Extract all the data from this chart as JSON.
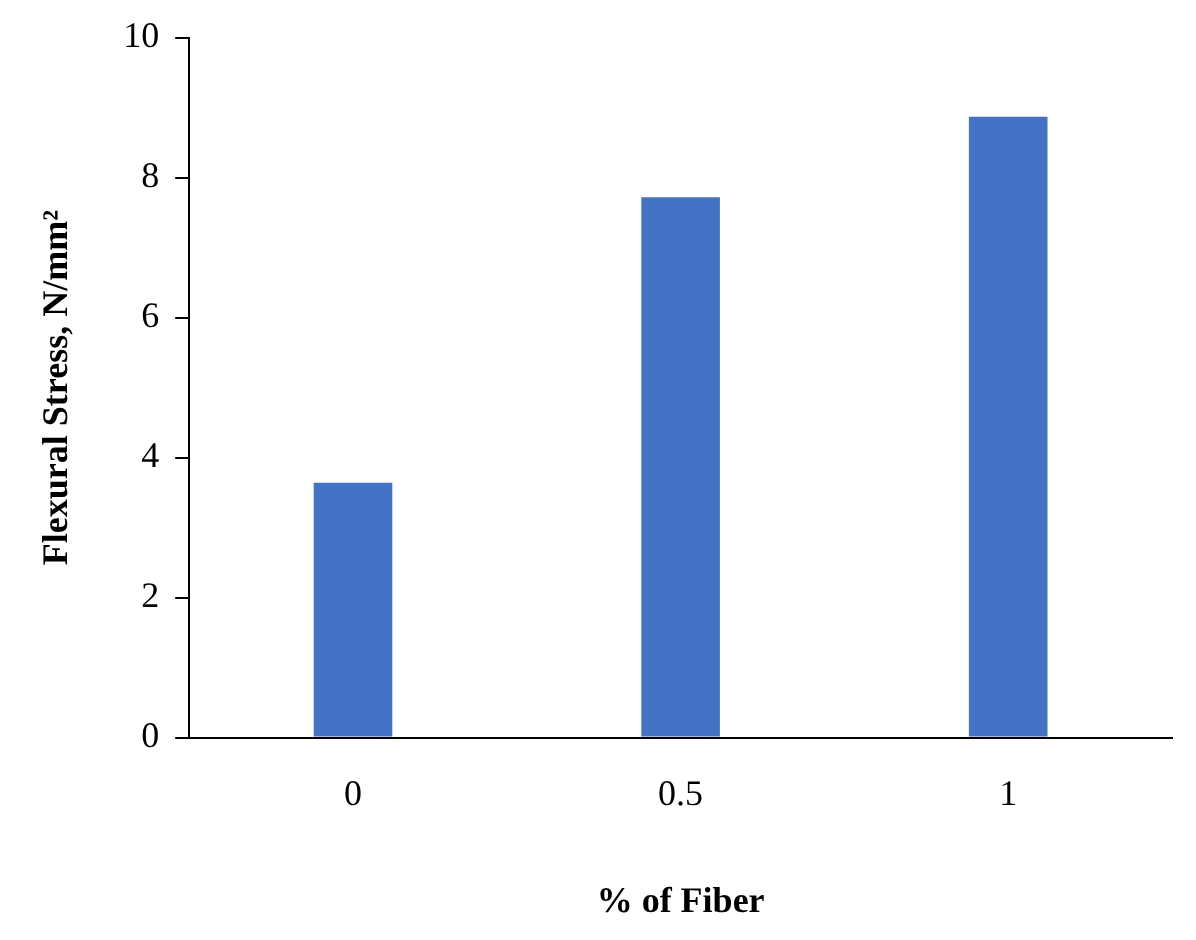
{
  "chart_data": {
    "type": "bar",
    "xlabel": "% of Fiber",
    "ylabel": "Flexural Stress, N/mm²",
    "categories": [
      "0",
      "0.5",
      "1"
    ],
    "values": [
      3.64,
      7.72,
      8.87
    ],
    "color": "#4472c4",
    "ylim": [
      0,
      10
    ],
    "yticks": [
      0,
      2,
      4,
      6,
      8,
      10
    ],
    "grid": false,
    "legend": false
  }
}
